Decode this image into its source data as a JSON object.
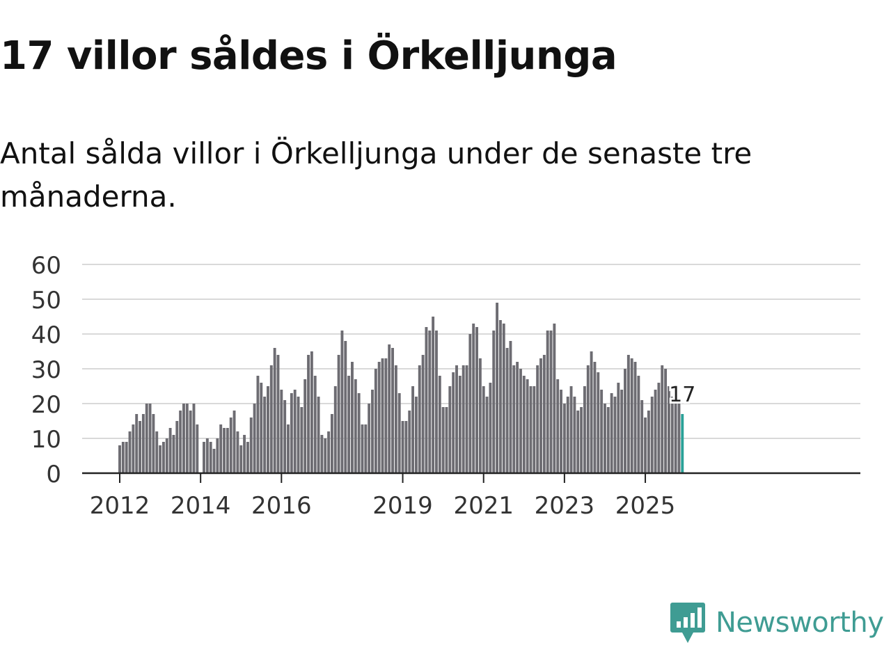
{
  "title": "17 villor såldes i Örkelljunga",
  "subtitle": "Antal sålda villor i Örkelljunga under de senaste tre månaderna.",
  "brand": {
    "name": "Newsworthy",
    "color": "#3f9c93"
  },
  "chart_data": {
    "type": "bar",
    "title": "17 villor såldes i Örkelljunga",
    "subtitle": "Antal sålda villor i Örkelljunga under de senaste tre månaderna.",
    "xlabel": "",
    "ylabel": "",
    "ylim": [
      0,
      60
    ],
    "yticks": [
      0,
      10,
      20,
      30,
      40,
      50,
      60
    ],
    "grid": true,
    "x_ticks": [
      {
        "label": "2012",
        "index": 0
      },
      {
        "label": "2014",
        "index": 24
      },
      {
        "label": "2016",
        "index": 48
      },
      {
        "label": "2019",
        "index": 84
      },
      {
        "label": "2021",
        "index": 108
      },
      {
        "label": "2023",
        "index": 132
      },
      {
        "label": "2025",
        "index": 156
      }
    ],
    "start": "2012-01",
    "granularity": "month",
    "values_are": "rolling three-month total",
    "bar_color": "#6d6c72",
    "highlight_color": "#2aa198",
    "highlight_label": "17",
    "values": [
      8,
      9,
      9,
      12,
      14,
      17,
      15,
      17,
      20,
      20,
      17,
      12,
      8,
      9,
      10,
      13,
      11,
      15,
      18,
      20,
      20,
      18,
      20,
      14,
      null,
      9,
      10,
      9,
      7,
      10,
      14,
      13,
      13,
      16,
      18,
      12,
      8,
      11,
      9,
      16,
      20,
      28,
      26,
      22,
      25,
      31,
      36,
      34,
      24,
      21,
      14,
      23,
      24,
      22,
      19,
      27,
      34,
      35,
      28,
      22,
      11,
      10,
      12,
      17,
      25,
      34,
      41,
      38,
      28,
      32,
      27,
      23,
      14,
      14,
      20,
      24,
      30,
      32,
      33,
      33,
      37,
      36,
      31,
      23,
      15,
      15,
      18,
      25,
      22,
      31,
      34,
      42,
      41,
      45,
      41,
      28,
      19,
      19,
      25,
      29,
      31,
      28,
      31,
      31,
      40,
      43,
      42,
      33,
      25,
      22,
      26,
      41,
      49,
      44,
      43,
      36,
      38,
      31,
      32,
      30,
      28,
      27,
      25,
      25,
      31,
      33,
      34,
      41,
      41,
      43,
      27,
      24,
      20,
      22,
      25,
      22,
      18,
      19,
      25,
      31,
      35,
      32,
      29,
      24,
      20,
      19,
      23,
      22,
      26,
      24,
      30,
      34,
      33,
      32,
      28,
      21,
      16,
      18,
      22,
      24,
      26,
      31,
      30,
      25,
      22,
      21,
      20,
      17
    ]
  }
}
